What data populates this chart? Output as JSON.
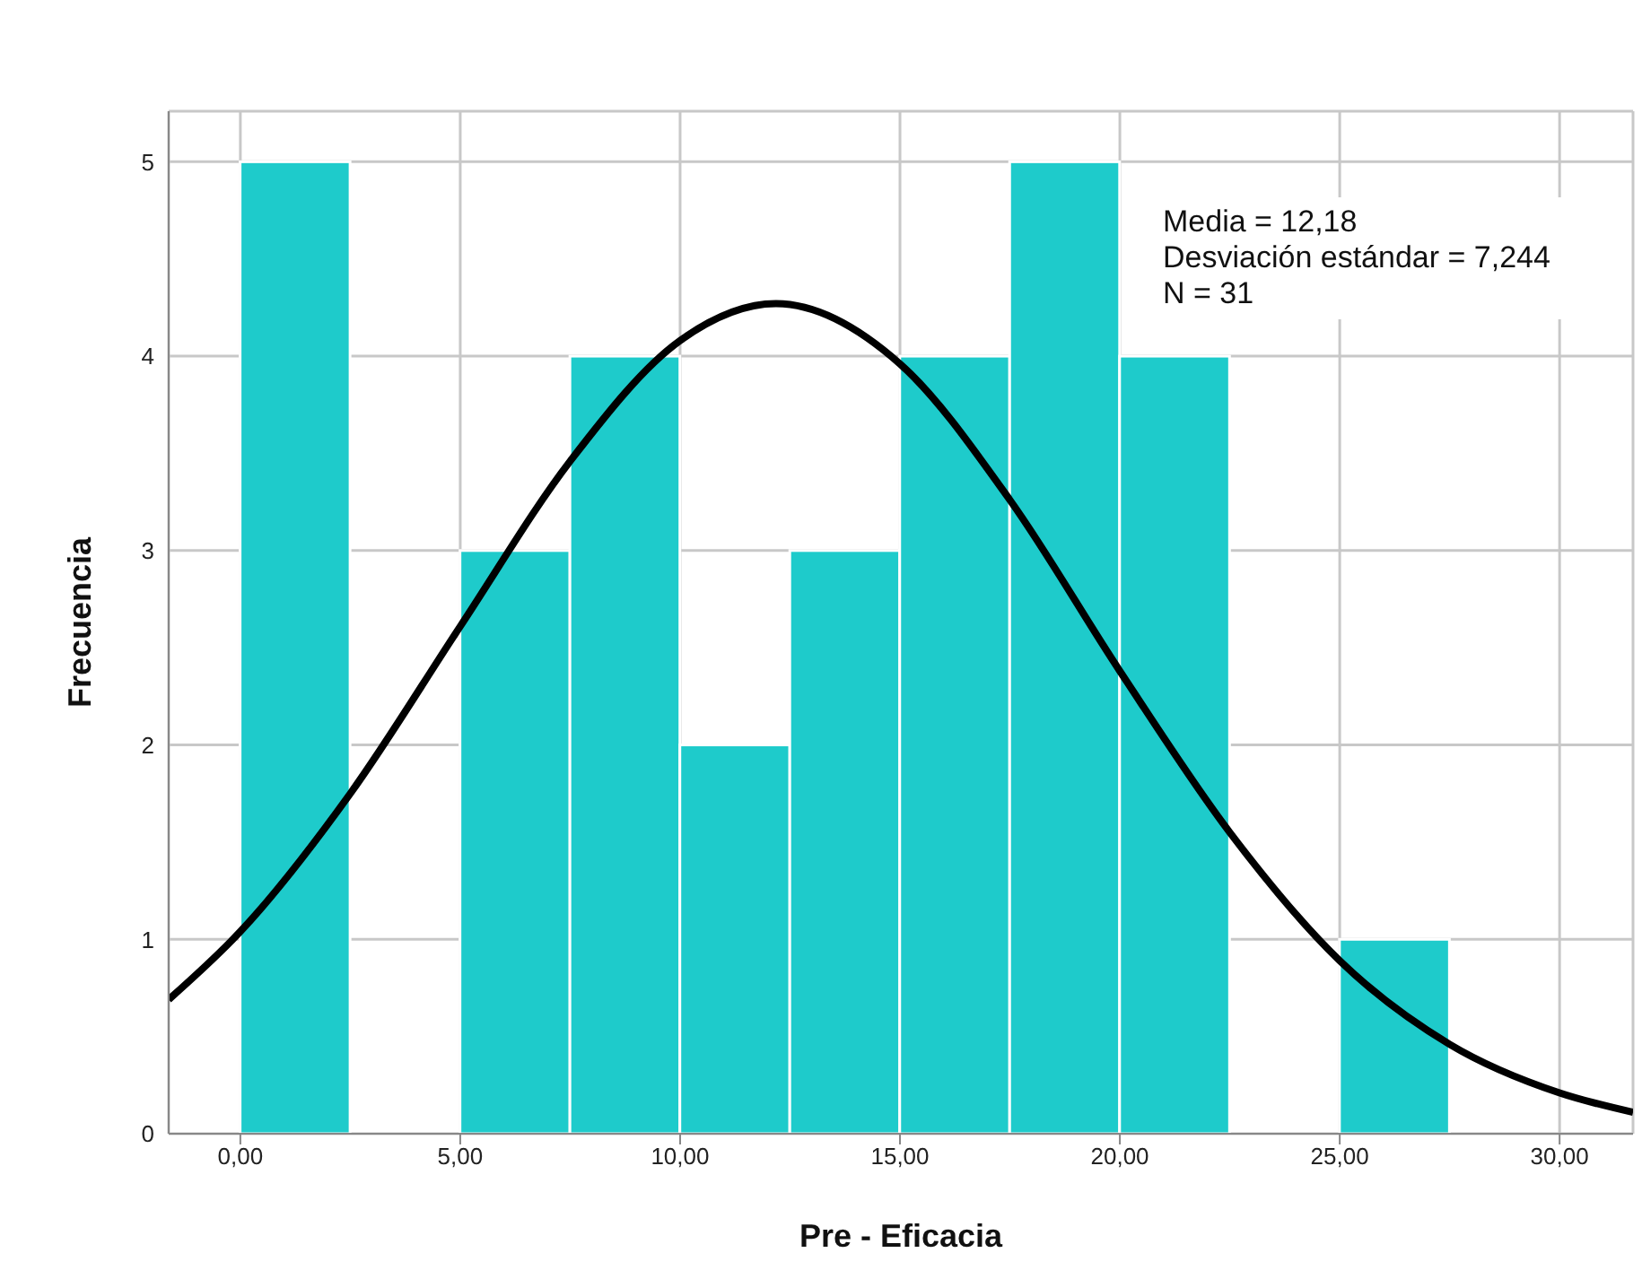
{
  "chart_data": {
    "type": "histogram",
    "xlabel": "Pre - Eficacia",
    "ylabel": "Frecuencia",
    "bins": [
      0,
      2.5,
      5,
      7.5,
      10,
      12.5,
      15,
      17.5,
      20,
      22.5,
      25,
      27.5
    ],
    "values": [
      5,
      0,
      3,
      4,
      2,
      3,
      4,
      5,
      4,
      0,
      1
    ],
    "color": "#1ecbcb",
    "series": [
      {
        "type": "line",
        "color": "#000000",
        "x": [
          -1.63,
          0,
          2.5,
          5,
          7.5,
          10,
          12.18,
          15,
          17.5,
          20,
          22.5,
          25,
          27.5,
          30,
          31.67
        ],
        "values": [
          0.69,
          1.04,
          1.75,
          2.61,
          3.46,
          4.08,
          4.27,
          3.96,
          3.26,
          2.38,
          1.55,
          0.89,
          0.46,
          0.21,
          0.11
        ]
      }
    ],
    "xlim": [
      -1.63,
      31.67
    ],
    "xticks": [
      {
        "value": 0,
        "label": "0,00"
      },
      {
        "value": 5,
        "label": "5,00"
      },
      {
        "value": 10,
        "label": "10,00"
      },
      {
        "value": 15,
        "label": "15,00"
      },
      {
        "value": 20,
        "label": "20,00"
      },
      {
        "value": 25,
        "label": "25,00"
      },
      {
        "value": 30,
        "label": "30,00"
      }
    ],
    "ylim": [
      0,
      5.26
    ],
    "yticks": [
      0,
      1,
      2,
      3,
      4,
      5
    ],
    "grid": true,
    "marker": "none",
    "line_style": "solid",
    "annotations": [
      "Media = 12,18",
      "Desviación estándar = 7,244",
      "N = 31"
    ]
  }
}
